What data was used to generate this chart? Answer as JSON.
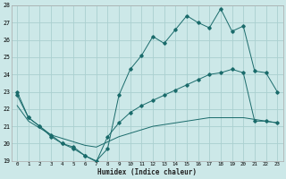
{
  "xlabel": "Humidex (Indice chaleur)",
  "bg_color": "#cce8e8",
  "grid_color": "#aad0d0",
  "line_color": "#1a6b6b",
  "xlim": [
    -0.5,
    23.5
  ],
  "ylim": [
    19,
    28
  ],
  "yticks": [
    19,
    20,
    21,
    22,
    23,
    24,
    25,
    26,
    27,
    28
  ],
  "xticks": [
    0,
    1,
    2,
    3,
    4,
    5,
    6,
    7,
    8,
    9,
    10,
    11,
    12,
    13,
    14,
    15,
    16,
    17,
    18,
    19,
    20,
    21,
    22,
    23
  ],
  "line1_x": [
    0,
    1,
    2,
    3,
    4,
    5,
    6,
    7,
    8,
    9,
    10,
    11,
    12,
    13,
    14,
    15,
    16,
    17,
    18,
    19,
    20,
    21,
    22,
    23
  ],
  "line1_y": [
    23.0,
    21.5,
    21.0,
    20.5,
    20.0,
    19.7,
    19.3,
    19.0,
    19.7,
    22.8,
    24.3,
    25.1,
    26.2,
    25.8,
    26.6,
    27.4,
    27.0,
    26.7,
    27.8,
    26.5,
    26.8,
    24.2,
    24.1,
    23.0
  ],
  "line2_x": [
    0,
    1,
    2,
    3,
    4,
    5,
    6,
    7,
    8,
    9,
    10,
    11,
    12,
    13,
    14,
    15,
    16,
    17,
    18,
    19,
    20,
    21,
    22,
    23
  ],
  "line2_y": [
    22.8,
    21.5,
    21.0,
    20.4,
    20.0,
    19.8,
    19.3,
    18.95,
    20.4,
    21.2,
    21.8,
    22.2,
    22.5,
    22.8,
    23.1,
    23.4,
    23.7,
    24.0,
    24.1,
    24.3,
    24.1,
    21.3,
    21.3,
    21.2
  ],
  "line3_x": [
    0,
    1,
    2,
    3,
    4,
    5,
    6,
    7,
    8,
    9,
    10,
    11,
    12,
    13,
    14,
    15,
    16,
    17,
    18,
    19,
    20,
    21,
    22,
    23
  ],
  "line3_y": [
    22.2,
    21.3,
    20.9,
    20.5,
    20.3,
    20.1,
    19.9,
    19.8,
    20.1,
    20.4,
    20.6,
    20.8,
    21.0,
    21.1,
    21.2,
    21.3,
    21.4,
    21.5,
    21.5,
    21.5,
    21.5,
    21.4,
    21.3,
    21.2
  ]
}
